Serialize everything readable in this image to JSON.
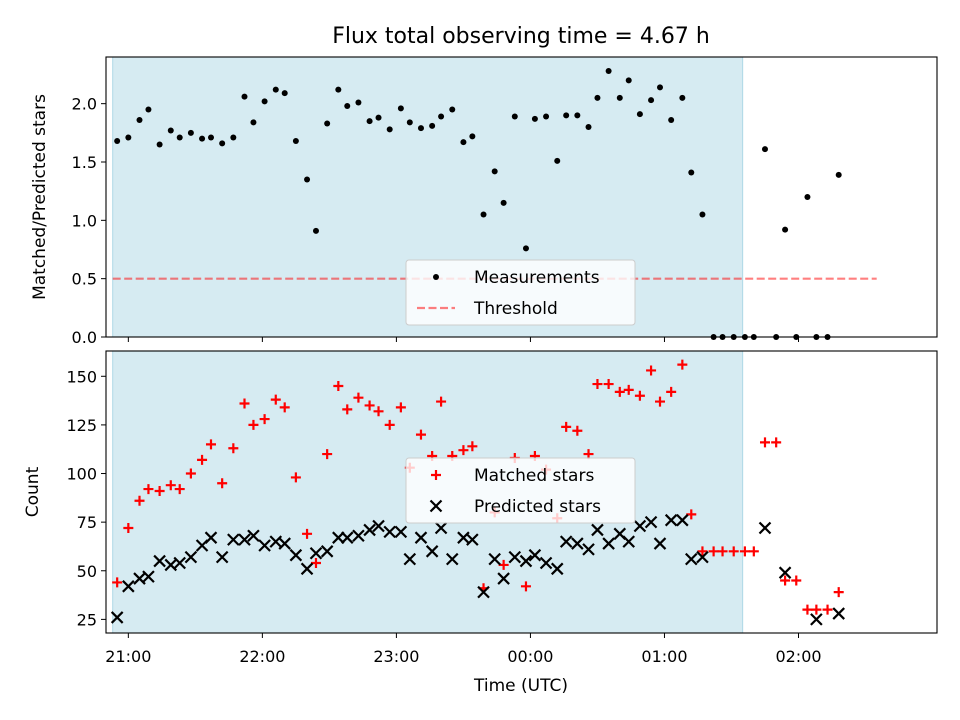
{
  "title": "Flux total observing time = 4.67 h",
  "xlabel": "Time (UTC)",
  "x_ticks": [
    "21:00",
    "22:00",
    "23:00",
    "00:00",
    "01:00",
    "02:00"
  ],
  "colors": {
    "shade": "#add8e6",
    "measurements": "#000000",
    "threshold": "#ff0000",
    "matched": "#ff0000",
    "predicted": "#000000"
  },
  "chart_data": [
    {
      "type": "scatter",
      "ylabel": "Matched/Predicted stars",
      "xlim": [
        "20:50",
        "03:02"
      ],
      "ylim": [
        0,
        2.4
      ],
      "y_ticks": [
        "0.0",
        "0.5",
        "1.0",
        "1.5",
        "2.0"
      ],
      "shaded_span": [
        "20:53",
        "01:35"
      ],
      "legend": {
        "location": "lower center",
        "entries": [
          "Measurements",
          "Threshold"
        ]
      },
      "threshold": {
        "name": "Threshold",
        "value": 0.5,
        "x_range": [
          "20:53",
          "02:35"
        ],
        "style": "dashed"
      },
      "series": [
        {
          "name": "Measurements",
          "marker": "dot",
          "points": [
            [
              "20:55",
              1.68
            ],
            [
              "21:00",
              1.71
            ],
            [
              "21:05",
              1.86
            ],
            [
              "21:09",
              1.95
            ],
            [
              "21:14",
              1.65
            ],
            [
              "21:19",
              1.77
            ],
            [
              "21:23",
              1.71
            ],
            [
              "21:28",
              1.75
            ],
            [
              "21:33",
              1.7
            ],
            [
              "21:37",
              1.71
            ],
            [
              "21:42",
              1.66
            ],
            [
              "21:47",
              1.71
            ],
            [
              "21:52",
              2.06
            ],
            [
              "21:56",
              1.84
            ],
            [
              "22:01",
              2.02
            ],
            [
              "22:06",
              2.12
            ],
            [
              "22:10",
              2.09
            ],
            [
              "22:15",
              1.68
            ],
            [
              "22:20",
              1.35
            ],
            [
              "22:24",
              0.91
            ],
            [
              "22:29",
              1.83
            ],
            [
              "22:34",
              2.12
            ],
            [
              "22:38",
              1.98
            ],
            [
              "22:43",
              2.01
            ],
            [
              "22:48",
              1.85
            ],
            [
              "22:52",
              1.88
            ],
            [
              "22:57",
              1.78
            ],
            [
              "23:02",
              1.96
            ],
            [
              "23:06",
              1.84
            ],
            [
              "23:11",
              1.79
            ],
            [
              "23:16",
              1.81
            ],
            [
              "23:20",
              1.89
            ],
            [
              "23:25",
              1.95
            ],
            [
              "23:30",
              1.67
            ],
            [
              "23:34",
              1.72
            ],
            [
              "23:39",
              1.05
            ],
            [
              "23:44",
              1.42
            ],
            [
              "23:48",
              1.15
            ],
            [
              "23:53",
              1.89
            ],
            [
              "23:58",
              0.76
            ],
            [
              "00:02",
              1.87
            ],
            [
              "00:07",
              1.89
            ],
            [
              "00:12",
              1.51
            ],
            [
              "00:16",
              1.9
            ],
            [
              "00:21",
              1.9
            ],
            [
              "00:26",
              1.8
            ],
            [
              "00:30",
              2.05
            ],
            [
              "00:35",
              2.28
            ],
            [
              "00:40",
              2.05
            ],
            [
              "00:44",
              2.2
            ],
            [
              "00:49",
              1.91
            ],
            [
              "00:54",
              2.03
            ],
            [
              "00:58",
              2.14
            ],
            [
              "01:03",
              1.86
            ],
            [
              "01:08",
              2.05
            ],
            [
              "01:12",
              1.41
            ],
            [
              "01:17",
              1.05
            ],
            [
              "01:22",
              0.0
            ],
            [
              "01:26",
              0.0
            ],
            [
              "01:31",
              0.0
            ],
            [
              "01:36",
              0.0
            ],
            [
              "01:40",
              0.0
            ],
            [
              "01:45",
              1.61
            ],
            [
              "01:50",
              0.0
            ],
            [
              "01:54",
              0.92
            ],
            [
              "01:59",
              0.0
            ],
            [
              "02:04",
              1.2
            ],
            [
              "02:08",
              0.0
            ],
            [
              "02:13",
              0.0
            ],
            [
              "02:18",
              1.39
            ]
          ]
        }
      ]
    },
    {
      "type": "scatter",
      "ylabel": "Count",
      "xlim": [
        "20:50",
        "03:02"
      ],
      "ylim": [
        18,
        163
      ],
      "y_ticks": [
        "25",
        "50",
        "75",
        "100",
        "125",
        "150"
      ],
      "shaded_span": [
        "20:53",
        "01:35"
      ],
      "legend": {
        "location": "center",
        "entries": [
          "Matched stars",
          "Predicted stars"
        ]
      },
      "series": [
        {
          "name": "Matched stars",
          "marker": "plus",
          "points": [
            [
              "20:55",
              44
            ],
            [
              "21:00",
              72
            ],
            [
              "21:05",
              86
            ],
            [
              "21:09",
              92
            ],
            [
              "21:14",
              91
            ],
            [
              "21:19",
              94
            ],
            [
              "21:23",
              92
            ],
            [
              "21:28",
              100
            ],
            [
              "21:33",
              107
            ],
            [
              "21:37",
              115
            ],
            [
              "21:42",
              95
            ],
            [
              "21:47",
              113
            ],
            [
              "21:52",
              136
            ],
            [
              "21:56",
              125
            ],
            [
              "22:01",
              128
            ],
            [
              "22:06",
              138
            ],
            [
              "22:10",
              134
            ],
            [
              "22:15",
              98
            ],
            [
              "22:20",
              69
            ],
            [
              "22:24",
              54
            ],
            [
              "22:29",
              110
            ],
            [
              "22:34",
              145
            ],
            [
              "22:38",
              133
            ],
            [
              "22:43",
              139
            ],
            [
              "22:48",
              135
            ],
            [
              "22:52",
              132
            ],
            [
              "22:57",
              125
            ],
            [
              "23:02",
              134
            ],
            [
              "23:06",
              103
            ],
            [
              "23:11",
              120
            ],
            [
              "23:16",
              109
            ],
            [
              "23:20",
              137
            ],
            [
              "23:25",
              109
            ],
            [
              "23:30",
              112
            ],
            [
              "23:34",
              114
            ],
            [
              "23:39",
              41
            ],
            [
              "23:44",
              80
            ],
            [
              "23:48",
              53
            ],
            [
              "23:53",
              108
            ],
            [
              "23:58",
              42
            ],
            [
              "00:02",
              109
            ],
            [
              "00:07",
              102
            ],
            [
              "00:12",
              77
            ],
            [
              "00:16",
              124
            ],
            [
              "00:21",
              122
            ],
            [
              "00:26",
              110
            ],
            [
              "00:30",
              146
            ],
            [
              "00:35",
              146
            ],
            [
              "00:40",
              142
            ],
            [
              "00:44",
              143
            ],
            [
              "00:49",
              140
            ],
            [
              "00:54",
              153
            ],
            [
              "00:58",
              137
            ],
            [
              "01:03",
              142
            ],
            [
              "01:08",
              156
            ],
            [
              "01:12",
              79
            ],
            [
              "01:17",
              60
            ],
            [
              "01:22",
              60
            ],
            [
              "01:26",
              60
            ],
            [
              "01:31",
              60
            ],
            [
              "01:36",
              60
            ],
            [
              "01:40",
              60
            ],
            [
              "01:45",
              116
            ],
            [
              "01:50",
              116
            ],
            [
              "01:54",
              45
            ],
            [
              "01:59",
              45
            ],
            [
              "02:04",
              30
            ],
            [
              "02:08",
              30
            ],
            [
              "02:13",
              30
            ],
            [
              "02:18",
              39
            ]
          ]
        },
        {
          "name": "Predicted stars",
          "marker": "x",
          "points": [
            [
              "20:55",
              26
            ],
            [
              "21:00",
              42
            ],
            [
              "21:05",
              46
            ],
            [
              "21:09",
              47
            ],
            [
              "21:14",
              55
            ],
            [
              "21:19",
              53
            ],
            [
              "21:23",
              54
            ],
            [
              "21:28",
              57
            ],
            [
              "21:33",
              63
            ],
            [
              "21:37",
              67
            ],
            [
              "21:42",
              57
            ],
            [
              "21:47",
              66
            ],
            [
              "21:52",
              66
            ],
            [
              "21:56",
              68
            ],
            [
              "22:01",
              63
            ],
            [
              "22:06",
              65
            ],
            [
              "22:10",
              64
            ],
            [
              "22:15",
              58
            ],
            [
              "22:20",
              51
            ],
            [
              "22:24",
              59
            ],
            [
              "22:29",
              60
            ],
            [
              "22:34",
              67
            ],
            [
              "22:38",
              67
            ],
            [
              "22:43",
              68
            ],
            [
              "22:48",
              71
            ],
            [
              "22:52",
              73
            ],
            [
              "22:57",
              70
            ],
            [
              "23:02",
              70
            ],
            [
              "23:06",
              56
            ],
            [
              "23:11",
              67
            ],
            [
              "23:16",
              60
            ],
            [
              "23:20",
              72
            ],
            [
              "23:25",
              56
            ],
            [
              "23:30",
              67
            ],
            [
              "23:34",
              66
            ],
            [
              "23:39",
              39
            ],
            [
              "23:44",
              56
            ],
            [
              "23:48",
              46
            ],
            [
              "23:53",
              57
            ],
            [
              "23:58",
              55
            ],
            [
              "00:02",
              58
            ],
            [
              "00:07",
              54
            ],
            [
              "00:12",
              51
            ],
            [
              "00:16",
              65
            ],
            [
              "00:21",
              64
            ],
            [
              "00:26",
              61
            ],
            [
              "00:30",
              71
            ],
            [
              "00:35",
              64
            ],
            [
              "00:40",
              69
            ],
            [
              "00:44",
              65
            ],
            [
              "00:49",
              73
            ],
            [
              "00:54",
              75
            ],
            [
              "00:58",
              64
            ],
            [
              "01:03",
              76
            ],
            [
              "01:08",
              76
            ],
            [
              "01:12",
              56
            ],
            [
              "01:17",
              57
            ],
            [
              "01:45",
              72
            ],
            [
              "01:54",
              49
            ],
            [
              "02:08",
              25
            ],
            [
              "02:18",
              28
            ]
          ]
        }
      ]
    }
  ]
}
